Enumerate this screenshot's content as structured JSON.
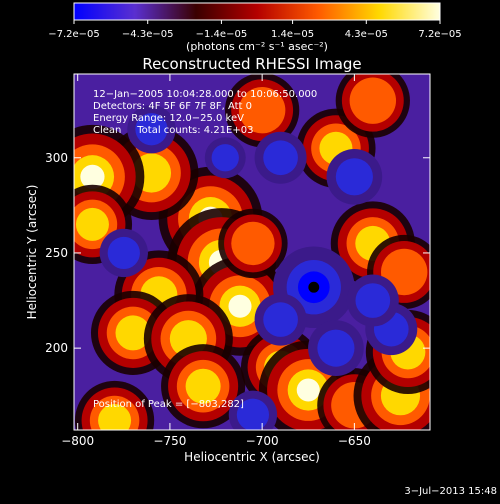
{
  "chart_data": {
    "type": "heatmap",
    "title": "Reconstructed RHESSI Image",
    "xlabel": "Heliocentric X (arcsec)",
    "ylabel": "Heliocentric Y (arcsec)",
    "xlim": [
      -802,
      -609
    ],
    "ylim": [
      157,
      344
    ],
    "x_ticks": [
      -800,
      -750,
      -700,
      -650
    ],
    "x_tick_labels": [
      "−800",
      "−750",
      "−700",
      "−650"
    ],
    "y_ticks": [
      200,
      250,
      300
    ],
    "y_tick_labels": [
      "200",
      "250",
      "300"
    ],
    "colorbar": {
      "range": [
        -7.2e-05,
        7.2e-05
      ],
      "tick_values": [
        -7.2e-05,
        -4.3e-05,
        -1.4e-05,
        1.4e-05,
        4.3e-05,
        7.2e-05
      ],
      "tick_labels": [
        "−7.2e−05",
        "−4.3e−05",
        "−1.4e−05",
        "1.4e−05",
        "4.3e−05",
        "7.2e−05"
      ],
      "label": "(photons cm⁻² s⁻¹ asec⁻²)",
      "colors": [
        "#0000ff",
        "#5a2fd0",
        "#3a0000",
        "#b40000",
        "#ff5a00",
        "#ffd800",
        "#ffffe0"
      ]
    },
    "annotations": [
      "12−Jan−2005 10:04:28.000 to 10:06:50.000",
      "Detectors: 4F 5F 6F 7F 8F, Att 0",
      "Energy Range: 12.0−25.0 keV",
      "Clean     Total counts: 4.21E+03"
    ],
    "peak_label": "Position of Peak = [−803,282]",
    "peak_position": [
      -803,
      282
    ],
    "blobs": [
      {
        "x": -728,
        "y": 268,
        "value": 6.5e-05
      },
      {
        "x": -722,
        "y": 245,
        "value": 7e-05
      },
      {
        "x": -712,
        "y": 222,
        "value": 6e-05
      },
      {
        "x": -760,
        "y": 292,
        "value": 5.5e-05
      },
      {
        "x": -792,
        "y": 290,
        "value": 6.5e-05
      },
      {
        "x": -792,
        "y": 265,
        "value": 4e-05
      },
      {
        "x": -756,
        "y": 228,
        "value": 5e-05
      },
      {
        "x": -770,
        "y": 208,
        "value": 4.5e-05
      },
      {
        "x": -740,
        "y": 205,
        "value": 5e-05
      },
      {
        "x": -732,
        "y": 180,
        "value": 4.5e-05
      },
      {
        "x": -690,
        "y": 190,
        "value": 4e-05
      },
      {
        "x": -675,
        "y": 178,
        "value": 6e-05
      },
      {
        "x": -650,
        "y": 170,
        "value": 3.5e-05
      },
      {
        "x": -625,
        "y": 175,
        "value": 5.5e-05
      },
      {
        "x": -621,
        "y": 198,
        "value": 4.5e-05
      },
      {
        "x": -640,
        "y": 255,
        "value": 4.5e-05
      },
      {
        "x": -623,
        "y": 240,
        "value": 3.5e-05
      },
      {
        "x": -660,
        "y": 305,
        "value": 4e-05
      },
      {
        "x": -640,
        "y": 330,
        "value": 3.5e-05
      },
      {
        "x": -700,
        "y": 325,
        "value": 3.5e-05
      },
      {
        "x": -780,
        "y": 162,
        "value": 4e-05
      },
      {
        "x": -705,
        "y": 255,
        "value": 3e-05
      },
      {
        "x": -672,
        "y": 232,
        "value": -7e-05
      },
      {
        "x": -690,
        "y": 300,
        "value": -3e-05
      },
      {
        "x": -650,
        "y": 290,
        "value": -3.5e-05
      },
      {
        "x": -630,
        "y": 210,
        "value": -3e-05
      },
      {
        "x": -660,
        "y": 200,
        "value": -3.5e-05
      },
      {
        "x": -690,
        "y": 215,
        "value": -3e-05
      },
      {
        "x": -760,
        "y": 315,
        "value": -2.5e-05
      },
      {
        "x": -775,
        "y": 250,
        "value": -2.5e-05
      },
      {
        "x": -705,
        "y": 165,
        "value": -2.5e-05
      },
      {
        "x": -640,
        "y": 225,
        "value": -3e-05
      },
      {
        "x": -720,
        "y": 300,
        "value": -1.5e-05
      }
    ]
  },
  "timestamp": "3−Jul−2013 15:48"
}
